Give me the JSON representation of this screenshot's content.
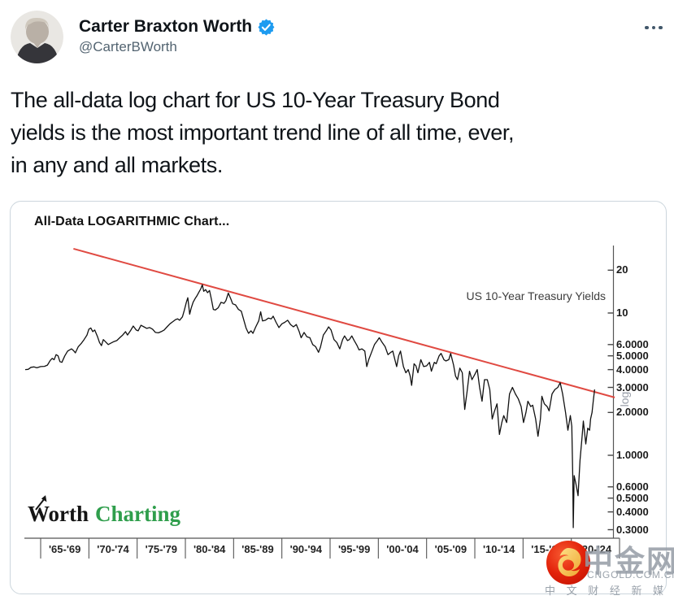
{
  "tweet": {
    "author": {
      "name": "Carter Braxton Worth",
      "handle": "@CarterBWorth",
      "verified": true,
      "verified_color": "#1d9bf0",
      "avatar_alt": "black-and-white portrait photo"
    },
    "more_menu": "more-options",
    "body_lines": [
      "The all-data log chart for US 10-Year Treasury Bond",
      "yields is the most important trend line of all time, ever,",
      "in any and all markets."
    ]
  },
  "chart_data": {
    "type": "line",
    "title": "All-Data LOGARITHMIC Chart...",
    "annotation": "US 10-Year Treasury Yields",
    "yaxis_label": "log",
    "y_scale": "log",
    "line_color": "#111111",
    "trend_color": "#e04a42",
    "x_labels": [
      "'65-'69",
      "'70-'74",
      "'75-'79",
      "'80-'84",
      "'85-'89",
      "'90-'94",
      "'95-'99",
      "'00-'04",
      "'05-'09",
      "'10-'14",
      "'15-'19",
      "'20-'24"
    ],
    "y_ticks": [
      {
        "v": 20,
        "label": "20"
      },
      {
        "v": 10,
        "label": "10"
      },
      {
        "v": 6,
        "label": "6.0000"
      },
      {
        "v": 5,
        "label": "5.0000"
      },
      {
        "v": 4,
        "label": "4.0000"
      },
      {
        "v": 3,
        "label": "3.0000"
      },
      {
        "v": 2,
        "label": "2.0000"
      },
      {
        "v": 1,
        "label": "1.0000"
      },
      {
        "v": 0.6,
        "label": "0.6000"
      },
      {
        "v": 0.5,
        "label": "0.5000"
      },
      {
        "v": 0.4,
        "label": "0.4000"
      },
      {
        "v": 0.3,
        "label": "0.3000"
      }
    ],
    "x_range": [
      1963.3,
      2024.6
    ],
    "trendline": [
      [
        1968.4,
        28.3
      ],
      [
        2024.5,
        2.55
      ]
    ],
    "series": [
      {
        "name": "US 10-Year Treasury Yield (%)",
        "points": [
          [
            1963.4,
            4.0
          ],
          [
            1963.7,
            4.02
          ],
          [
            1964,
            4.15
          ],
          [
            1964.3,
            4.18
          ],
          [
            1964.6,
            4.12
          ],
          [
            1965,
            4.2
          ],
          [
            1965.4,
            4.22
          ],
          [
            1965.7,
            4.3
          ],
          [
            1966,
            4.65
          ],
          [
            1966.2,
            4.8
          ],
          [
            1966.4,
            4.7
          ],
          [
            1966.6,
            5.1
          ],
          [
            1966.8,
            5.0
          ],
          [
            1967,
            4.55
          ],
          [
            1967.2,
            4.5
          ],
          [
            1967.5,
            5.0
          ],
          [
            1967.8,
            5.4
          ],
          [
            1968,
            5.5
          ],
          [
            1968.2,
            5.6
          ],
          [
            1968.4,
            5.45
          ],
          [
            1968.6,
            5.25
          ],
          [
            1968.9,
            5.8
          ],
          [
            1969.2,
            6.1
          ],
          [
            1969.5,
            6.5
          ],
          [
            1969.8,
            7.0
          ],
          [
            1970,
            7.7
          ],
          [
            1970.2,
            7.85
          ],
          [
            1970.4,
            7.4
          ],
          [
            1970.6,
            7.6
          ],
          [
            1970.9,
            6.8
          ],
          [
            1971.1,
            6.2
          ],
          [
            1971.3,
            5.9
          ],
          [
            1971.5,
            6.5
          ],
          [
            1971.8,
            6.2
          ],
          [
            1972,
            6.0
          ],
          [
            1972.3,
            6.15
          ],
          [
            1972.6,
            6.3
          ],
          [
            1972.9,
            6.4
          ],
          [
            1973.2,
            6.7
          ],
          [
            1973.5,
            7.0
          ],
          [
            1973.8,
            7.4
          ],
          [
            1974,
            7.0
          ],
          [
            1974.3,
            7.5
          ],
          [
            1974.6,
            8.1
          ],
          [
            1974.9,
            7.6
          ],
          [
            1975.1,
            7.5
          ],
          [
            1975.4,
            8.2
          ],
          [
            1975.7,
            8.0
          ],
          [
            1976,
            7.8
          ],
          [
            1976.3,
            7.9
          ],
          [
            1976.6,
            7.7
          ],
          [
            1976.9,
            7.3
          ],
          [
            1977.2,
            7.25
          ],
          [
            1977.5,
            7.4
          ],
          [
            1977.8,
            7.6
          ],
          [
            1978.1,
            8.0
          ],
          [
            1978.4,
            8.4
          ],
          [
            1978.7,
            8.7
          ],
          [
            1979,
            9.0
          ],
          [
            1979.2,
            9.1
          ],
          [
            1979.4,
            8.9
          ],
          [
            1979.7,
            9.4
          ],
          [
            1979.9,
            10.5
          ],
          [
            1980.1,
            11.9
          ],
          [
            1980.25,
            12.8
          ],
          [
            1980.45,
            9.8
          ],
          [
            1980.6,
            10.8
          ],
          [
            1980.8,
            11.9
          ],
          [
            1981,
            12.6
          ],
          [
            1981.2,
            13.2
          ],
          [
            1981.4,
            14.0
          ],
          [
            1981.6,
            14.8
          ],
          [
            1981.75,
            15.8
          ],
          [
            1981.9,
            14.2
          ],
          [
            1982.1,
            14.6
          ],
          [
            1982.3,
            13.9
          ],
          [
            1982.5,
            14.4
          ],
          [
            1982.7,
            12.5
          ],
          [
            1982.9,
            10.6
          ],
          [
            1983.1,
            10.5
          ],
          [
            1983.4,
            10.9
          ],
          [
            1983.7,
            11.9
          ],
          [
            1984,
            11.7
          ],
          [
            1984.2,
            12.2
          ],
          [
            1984.45,
            13.8
          ],
          [
            1984.7,
            12.6
          ],
          [
            1984.9,
            11.6
          ],
          [
            1985.2,
            11.4
          ],
          [
            1985.5,
            10.6
          ],
          [
            1985.8,
            10.3
          ],
          [
            1986,
            9.2
          ],
          [
            1986.3,
            7.8
          ],
          [
            1986.55,
            7.2
          ],
          [
            1986.8,
            7.5
          ],
          [
            1987,
            7.2
          ],
          [
            1987.3,
            8.0
          ],
          [
            1987.6,
            8.8
          ],
          [
            1987.8,
            10.2
          ],
          [
            1988,
            8.8
          ],
          [
            1988.3,
            8.9
          ],
          [
            1988.6,
            9.2
          ],
          [
            1988.9,
            9.1
          ],
          [
            1989.1,
            9.5
          ],
          [
            1989.4,
            8.6
          ],
          [
            1989.7,
            7.9
          ],
          [
            1990,
            8.4
          ],
          [
            1990.3,
            8.6
          ],
          [
            1990.6,
            8.9
          ],
          [
            1990.9,
            8.3
          ],
          [
            1991.2,
            8.0
          ],
          [
            1991.5,
            8.3
          ],
          [
            1991.8,
            7.4
          ],
          [
            1992,
            6.7
          ],
          [
            1992.3,
            7.3
          ],
          [
            1992.6,
            6.8
          ],
          [
            1992.9,
            6.7
          ],
          [
            1993.2,
            6.0
          ],
          [
            1993.5,
            5.8
          ],
          [
            1993.8,
            5.3
          ],
          [
            1994,
            5.75
          ],
          [
            1994.3,
            7.0
          ],
          [
            1994.6,
            7.5
          ],
          [
            1994.85,
            8.0
          ],
          [
            1995.1,
            7.6
          ],
          [
            1995.4,
            6.5
          ],
          [
            1995.7,
            6.2
          ],
          [
            1996,
            5.6
          ],
          [
            1996.3,
            6.5
          ],
          [
            1996.5,
            6.9
          ],
          [
            1996.8,
            6.4
          ],
          [
            1997,
            6.5
          ],
          [
            1997.25,
            6.9
          ],
          [
            1997.5,
            6.4
          ],
          [
            1997.8,
            5.9
          ],
          [
            1998,
            5.5
          ],
          [
            1998.3,
            5.6
          ],
          [
            1998.6,
            5.4
          ],
          [
            1998.8,
            4.2
          ],
          [
            1999,
            4.7
          ],
          [
            1999.3,
            5.3
          ],
          [
            1999.6,
            6.0
          ],
          [
            1999.9,
            6.4
          ],
          [
            2000.1,
            6.7
          ],
          [
            2000.4,
            6.2
          ],
          [
            2000.7,
            5.8
          ],
          [
            2001,
            5.1
          ],
          [
            2001.3,
            5.3
          ],
          [
            2001.5,
            5.4
          ],
          [
            2001.75,
            4.6
          ],
          [
            2001.9,
            4.2
          ],
          [
            2002.1,
            5.0
          ],
          [
            2002.3,
            5.4
          ],
          [
            2002.6,
            4.2
          ],
          [
            2002.85,
            3.8
          ],
          [
            2003.1,
            4.0
          ],
          [
            2003.3,
            3.6
          ],
          [
            2003.45,
            3.1
          ],
          [
            2003.7,
            4.4
          ],
          [
            2003.9,
            4.25
          ],
          [
            2004.1,
            3.8
          ],
          [
            2004.4,
            4.7
          ],
          [
            2004.7,
            4.2
          ],
          [
            2005,
            4.25
          ],
          [
            2005.3,
            4.5
          ],
          [
            2005.5,
            3.9
          ],
          [
            2005.8,
            4.5
          ],
          [
            2006,
            4.4
          ],
          [
            2006.3,
            5.0
          ],
          [
            2006.5,
            5.2
          ],
          [
            2006.8,
            4.7
          ],
          [
            2007,
            4.6
          ],
          [
            2007.3,
            4.7
          ],
          [
            2007.5,
            5.2
          ],
          [
            2007.8,
            4.3
          ],
          [
            2008,
            3.6
          ],
          [
            2008.2,
            3.4
          ],
          [
            2008.45,
            4.1
          ],
          [
            2008.7,
            3.8
          ],
          [
            2008.95,
            2.1
          ],
          [
            2009.2,
            2.8
          ],
          [
            2009.45,
            3.9
          ],
          [
            2009.7,
            3.4
          ],
          [
            2010,
            3.7
          ],
          [
            2010.25,
            4.0
          ],
          [
            2010.5,
            3.0
          ],
          [
            2010.75,
            2.4
          ],
          [
            2011,
            3.4
          ],
          [
            2011.3,
            3.4
          ],
          [
            2011.55,
            2.9
          ],
          [
            2011.8,
            1.8
          ],
          [
            2012,
            2.0
          ],
          [
            2012.3,
            2.3
          ],
          [
            2012.55,
            1.4
          ],
          [
            2012.8,
            1.7
          ],
          [
            2013,
            1.9
          ],
          [
            2013.3,
            1.7
          ],
          [
            2013.6,
            2.7
          ],
          [
            2013.9,
            3.0
          ],
          [
            2014.2,
            2.7
          ],
          [
            2014.5,
            2.5
          ],
          [
            2014.8,
            2.2
          ],
          [
            2015.05,
            1.7
          ],
          [
            2015.3,
            2.0
          ],
          [
            2015.5,
            2.4
          ],
          [
            2015.8,
            2.2
          ],
          [
            2016,
            2.25
          ],
          [
            2016.3,
            1.8
          ],
          [
            2016.55,
            1.36
          ],
          [
            2016.8,
            1.8
          ],
          [
            2016.95,
            2.6
          ],
          [
            2017.2,
            2.3
          ],
          [
            2017.5,
            2.2
          ],
          [
            2017.7,
            2.05
          ],
          [
            2018,
            2.7
          ],
          [
            2018.3,
            2.9
          ],
          [
            2018.6,
            3.0
          ],
          [
            2018.85,
            3.24
          ],
          [
            2019.1,
            2.7
          ],
          [
            2019.4,
            2.0
          ],
          [
            2019.65,
            1.5
          ],
          [
            2019.9,
            1.9
          ],
          [
            2020.05,
            1.6
          ],
          [
            2020.15,
            0.7
          ],
          [
            2020.2,
            0.31
          ],
          [
            2020.3,
            0.72
          ],
          [
            2020.5,
            0.62
          ],
          [
            2020.7,
            0.52
          ],
          [
            2020.9,
            0.92
          ],
          [
            2021.1,
            1.3
          ],
          [
            2021.25,
            1.74
          ],
          [
            2021.5,
            1.2
          ],
          [
            2021.7,
            1.55
          ],
          [
            2021.9,
            1.5
          ],
          [
            2022,
            1.8
          ],
          [
            2022.15,
            2.0
          ],
          [
            2022.3,
            2.5
          ],
          [
            2022.42,
            2.9
          ]
        ]
      }
    ]
  },
  "branding": {
    "word1": "Worth",
    "word2": "Charting",
    "word2_color": "#2f9e4c"
  },
  "watermark": {
    "site_name": "中金网",
    "site_url": "CNGOLD.COM.CN",
    "tagline": "中 文 财 经 新 媒 体",
    "logo_color": "#e3230b",
    "logo_swirl_color": "#f7c64a"
  }
}
